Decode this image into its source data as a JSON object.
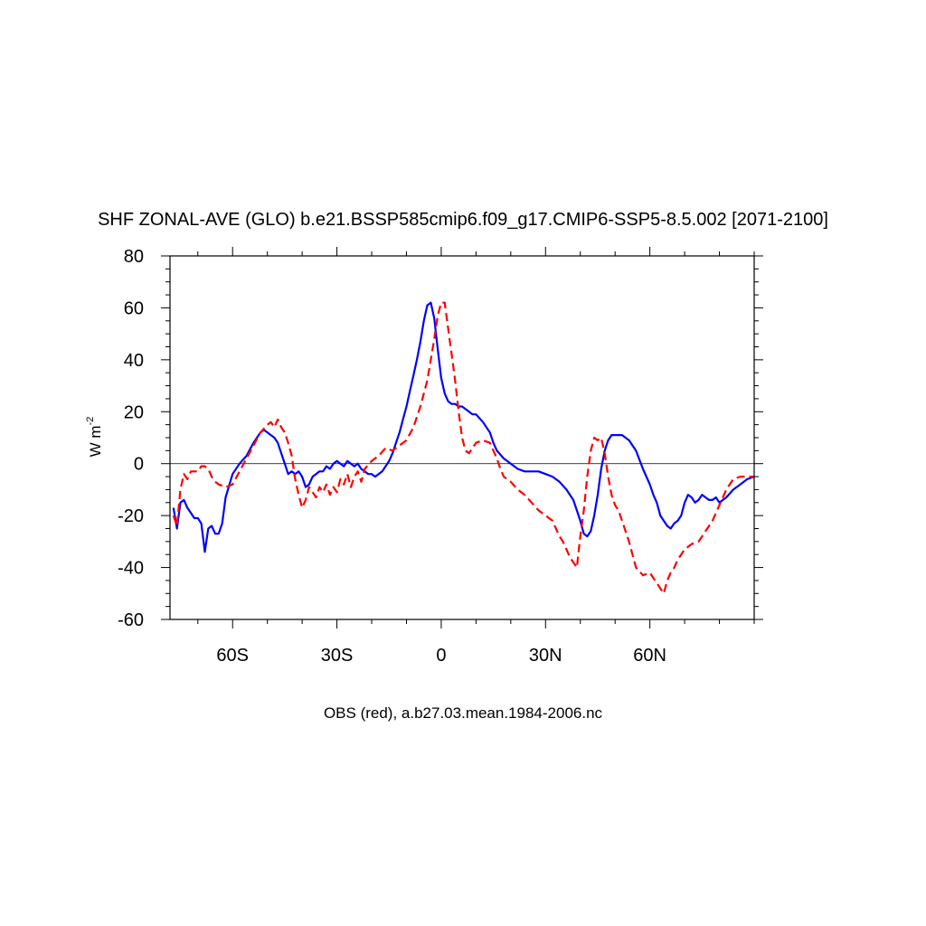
{
  "chart_data": {
    "type": "line",
    "title": "SHF ZONAL-AVE (GLO) b.e21.BSSP585cmip6.f09_g17.CMIP6-SSP5-8.5.002 [2071-2100]",
    "ylabel_main": "W m",
    "ylabel_sup": "-2",
    "xlabel": "OBS (red), a.b27.03.mean.1984-2006.nc",
    "xlim": [
      -78,
      90
    ],
    "ylim": [
      -60,
      80
    ],
    "x_ticks": [
      {
        "value": -60,
        "label": "60S"
      },
      {
        "value": -30,
        "label": "30S"
      },
      {
        "value": 0,
        "label": "0"
      },
      {
        "value": 30,
        "label": "30N"
      },
      {
        "value": 60,
        "label": "60N"
      }
    ],
    "y_ticks": [
      {
        "value": 80,
        "label": "80"
      },
      {
        "value": 60,
        "label": "60"
      },
      {
        "value": 40,
        "label": "40"
      },
      {
        "value": 20,
        "label": "20"
      },
      {
        "value": 0,
        "label": "0"
      },
      {
        "value": -20,
        "label": "-20"
      },
      {
        "value": -40,
        "label": "-40"
      },
      {
        "value": -60,
        "label": "-60"
      }
    ],
    "zero_line": true,
    "series": [
      {
        "color": "#0000ff",
        "dash": "solid",
        "x": [
          -77,
          -76,
          -75,
          -74,
          -73,
          -72,
          -71,
          -70,
          -69,
          -68,
          -67,
          -66,
          -65,
          -64,
          -63,
          -62,
          -60,
          -58,
          -56,
          -54,
          -52,
          -51,
          -50,
          -49,
          -48,
          -47,
          -46,
          -45,
          -44,
          -43,
          -42,
          -41,
          -40,
          -39,
          -38,
          -37,
          -36,
          -35,
          -34,
          -33,
          -32,
          -31,
          -30,
          -29,
          -28,
          -27,
          -26,
          -25,
          -24,
          -23,
          -22,
          -21,
          -20,
          -19,
          -18,
          -17,
          -16,
          -15,
          -14,
          -13,
          -12,
          -11,
          -10,
          -9,
          -8,
          -7,
          -6,
          -5,
          -4,
          -3,
          -2,
          -1,
          0,
          1,
          2,
          3,
          4,
          5,
          6,
          7,
          8,
          9,
          10,
          12,
          14,
          15,
          16,
          18,
          20,
          22,
          24,
          26,
          28,
          30,
          32,
          34,
          36,
          38,
          39,
          40,
          41,
          42,
          43,
          44,
          45,
          46,
          47,
          48,
          49,
          50,
          52,
          54,
          56,
          58,
          60,
          61,
          62,
          63,
          64,
          65,
          66,
          67,
          68,
          69,
          70,
          71,
          72,
          73,
          74,
          75,
          76,
          77,
          78,
          79,
          80,
          82,
          84,
          86,
          88,
          90
        ],
        "y": [
          -17,
          -25,
          -15,
          -14,
          -17,
          -19,
          -21,
          -21,
          -23,
          -34,
          -25,
          -24,
          -27,
          -27,
          -23,
          -13,
          -4,
          0,
          3,
          8,
          12,
          13,
          12,
          11,
          10,
          8,
          4,
          0,
          -4,
          -3,
          -4,
          -3,
          -5,
          -9,
          -8,
          -5,
          -4,
          -3,
          -3,
          -1,
          -2,
          0,
          1,
          0,
          -1,
          1,
          0,
          -1,
          0,
          -2,
          -3,
          -4,
          -4,
          -5,
          -4,
          -3,
          -1,
          1,
          4,
          8,
          12,
          17,
          22,
          28,
          34,
          40,
          47,
          55,
          61,
          62,
          56,
          44,
          33,
          27,
          24,
          23,
          23,
          22,
          22,
          21,
          20,
          19,
          19,
          16,
          12,
          8,
          5,
          2,
          0,
          -2,
          -3,
          -3,
          -3,
          -4,
          -5,
          -7,
          -10,
          -14,
          -18,
          -22,
          -27,
          -28,
          -26,
          -20,
          -12,
          -2,
          5,
          9,
          11,
          11,
          11,
          9,
          5,
          -2,
          -8,
          -12,
          -15,
          -20,
          -22,
          -24,
          -25,
          -23,
          -22,
          -20,
          -15,
          -12,
          -13,
          -15,
          -14,
          -12,
          -13,
          -14,
          -14,
          -13,
          -15,
          -13,
          -10,
          -8,
          -6,
          -5
        ]
      },
      {
        "color": "#ff0000",
        "dash": "dashed",
        "x": [
          -77,
          -76,
          -75,
          -74,
          -73,
          -72,
          -70,
          -69,
          -68,
          -67,
          -66,
          -65,
          -64,
          -62,
          -60,
          -58,
          -56,
          -54,
          -52,
          -50,
          -49,
          -48,
          -47,
          -46,
          -45,
          -44,
          -43,
          -42,
          -41,
          -40,
          -39,
          -38,
          -37,
          -36,
          -35,
          -34,
          -33,
          -32,
          -31,
          -30,
          -29,
          -28,
          -27,
          -26,
          -25,
          -24,
          -23,
          -22,
          -20,
          -18,
          -16,
          -14,
          -12,
          -10,
          -8,
          -6,
          -4,
          -3,
          -2,
          -1,
          0,
          1,
          2,
          3,
          4,
          5,
          6,
          7,
          8,
          9,
          10,
          12,
          14,
          15,
          16,
          17,
          18,
          20,
          22,
          24,
          26,
          28,
          30,
          32,
          33,
          34,
          35,
          36,
          37,
          38,
          39,
          40,
          41,
          42,
          43,
          44,
          45,
          46,
          47,
          48,
          49,
          50,
          51,
          52,
          54,
          56,
          58,
          60,
          62,
          63,
          64,
          65,
          66,
          67,
          68,
          69,
          70,
          72,
          74,
          76,
          78,
          80,
          82,
          84,
          86,
          88,
          90
        ],
        "y": [
          -20,
          -24,
          -10,
          -4,
          -6,
          -3,
          -3,
          -1,
          -1,
          -2,
          -5,
          -7,
          -8,
          -9,
          -8,
          -3,
          2,
          7,
          12,
          15,
          16,
          14,
          17,
          14,
          12,
          8,
          3,
          -6,
          -12,
          -17,
          -14,
          -9,
          -11,
          -13,
          -9,
          -11,
          -8,
          -12,
          -9,
          -11,
          -6,
          -8,
          -4,
          -9,
          -5,
          -3,
          -7,
          -2,
          1,
          3,
          6,
          5,
          7,
          9,
          14,
          22,
          32,
          40,
          48,
          57,
          62,
          62,
          52,
          42,
          32,
          20,
          10,
          5,
          4,
          6,
          8,
          9,
          8,
          5,
          2,
          -2,
          -5,
          -7,
          -10,
          -12,
          -15,
          -18,
          -20,
          -22,
          -25,
          -28,
          -30,
          -33,
          -36,
          -38,
          -40,
          -28,
          -18,
          -5,
          5,
          10,
          9,
          10,
          4,
          -5,
          -12,
          -16,
          -18,
          -22,
          -30,
          -40,
          -43,
          -42,
          -46,
          -48,
          -50,
          -45,
          -42,
          -40,
          -37,
          -35,
          -33,
          -31,
          -30,
          -26,
          -22,
          -16,
          -10,
          -6,
          -5,
          -5,
          -5
        ]
      }
    ]
  }
}
